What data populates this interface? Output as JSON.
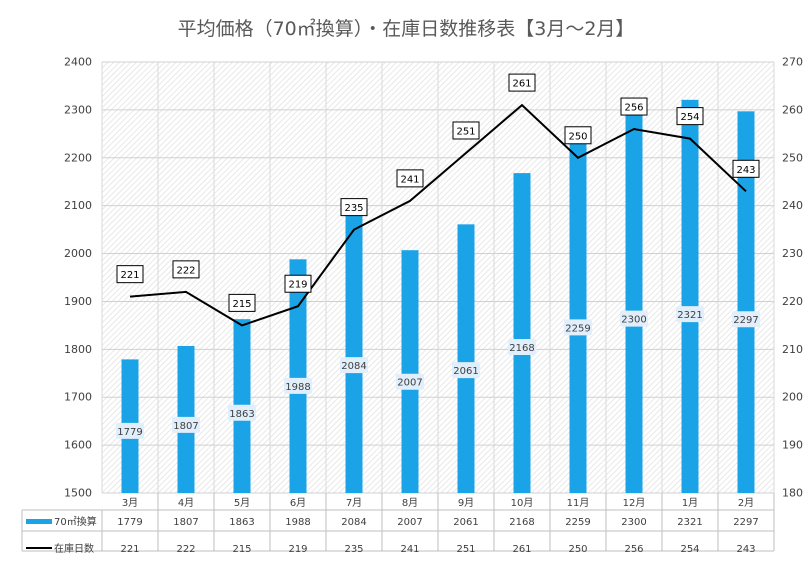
{
  "chart_data": {
    "title": "平均価格（70㎡換算）・在庫日数推移表【3月～2月】",
    "type": "bar+line",
    "categories": [
      "3月",
      "4月",
      "5月",
      "6月",
      "7月",
      "8月",
      "9月",
      "10月",
      "11月",
      "12月",
      "1月",
      "2月"
    ],
    "series": [
      {
        "name": "70㎡換算",
        "type": "bar",
        "axis": "left",
        "color": "#1aa3e6",
        "values": [
          1779,
          1807,
          1863,
          1988,
          2084,
          2007,
          2061,
          2168,
          2259,
          2300,
          2321,
          2297
        ]
      },
      {
        "name": "在庫日数",
        "type": "line",
        "axis": "right",
        "color": "#000000",
        "values": [
          221,
          222,
          215,
          219,
          235,
          241,
          251,
          261,
          250,
          256,
          254,
          243
        ]
      }
    ],
    "y_left": {
      "min": 1500,
      "max": 2400,
      "step": 100,
      "ticks": [
        "1500",
        "1600",
        "1700",
        "1800",
        "1900",
        "2000",
        "2100",
        "2200",
        "2300",
        "2400"
      ]
    },
    "y_right": {
      "min": 180,
      "max": 270,
      "step": 10,
      "ticks": [
        "180",
        "190",
        "200",
        "210",
        "220",
        "230",
        "240",
        "250",
        "260",
        "270"
      ]
    },
    "grid": true,
    "legend": "data-table-bottom"
  }
}
